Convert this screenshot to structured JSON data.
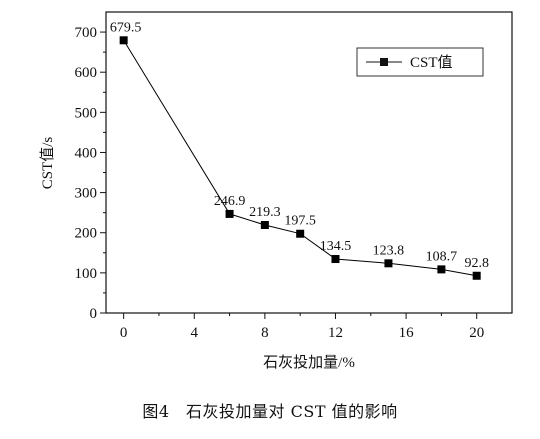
{
  "caption": "图4　石灰投加量对 CST 值的影响",
  "chart_data": {
    "type": "line",
    "xlabel": "石灰投加量/%",
    "ylabel": "CST值/s",
    "xlim": [
      -1,
      22
    ],
    "ylim": [
      0,
      750
    ],
    "xticks": [
      0,
      4,
      8,
      12,
      16,
      20
    ],
    "yticks": [
      0,
      100,
      200,
      300,
      400,
      500,
      600,
      700
    ],
    "legend_position": "top-right",
    "grid": false,
    "series": [
      {
        "name": "CST值",
        "marker": "square",
        "color": "#000000",
        "x": [
          0,
          6,
          8,
          10,
          12,
          15,
          18,
          20
        ],
        "y": [
          679.5,
          246.9,
          219.3,
          197.5,
          134.5,
          123.8,
          108.7,
          92.8
        ],
        "labels": [
          "679.5",
          "246.9",
          "219.3",
          "197.5",
          "134.5",
          "123.8",
          "108.7",
          "92.8"
        ]
      }
    ]
  }
}
